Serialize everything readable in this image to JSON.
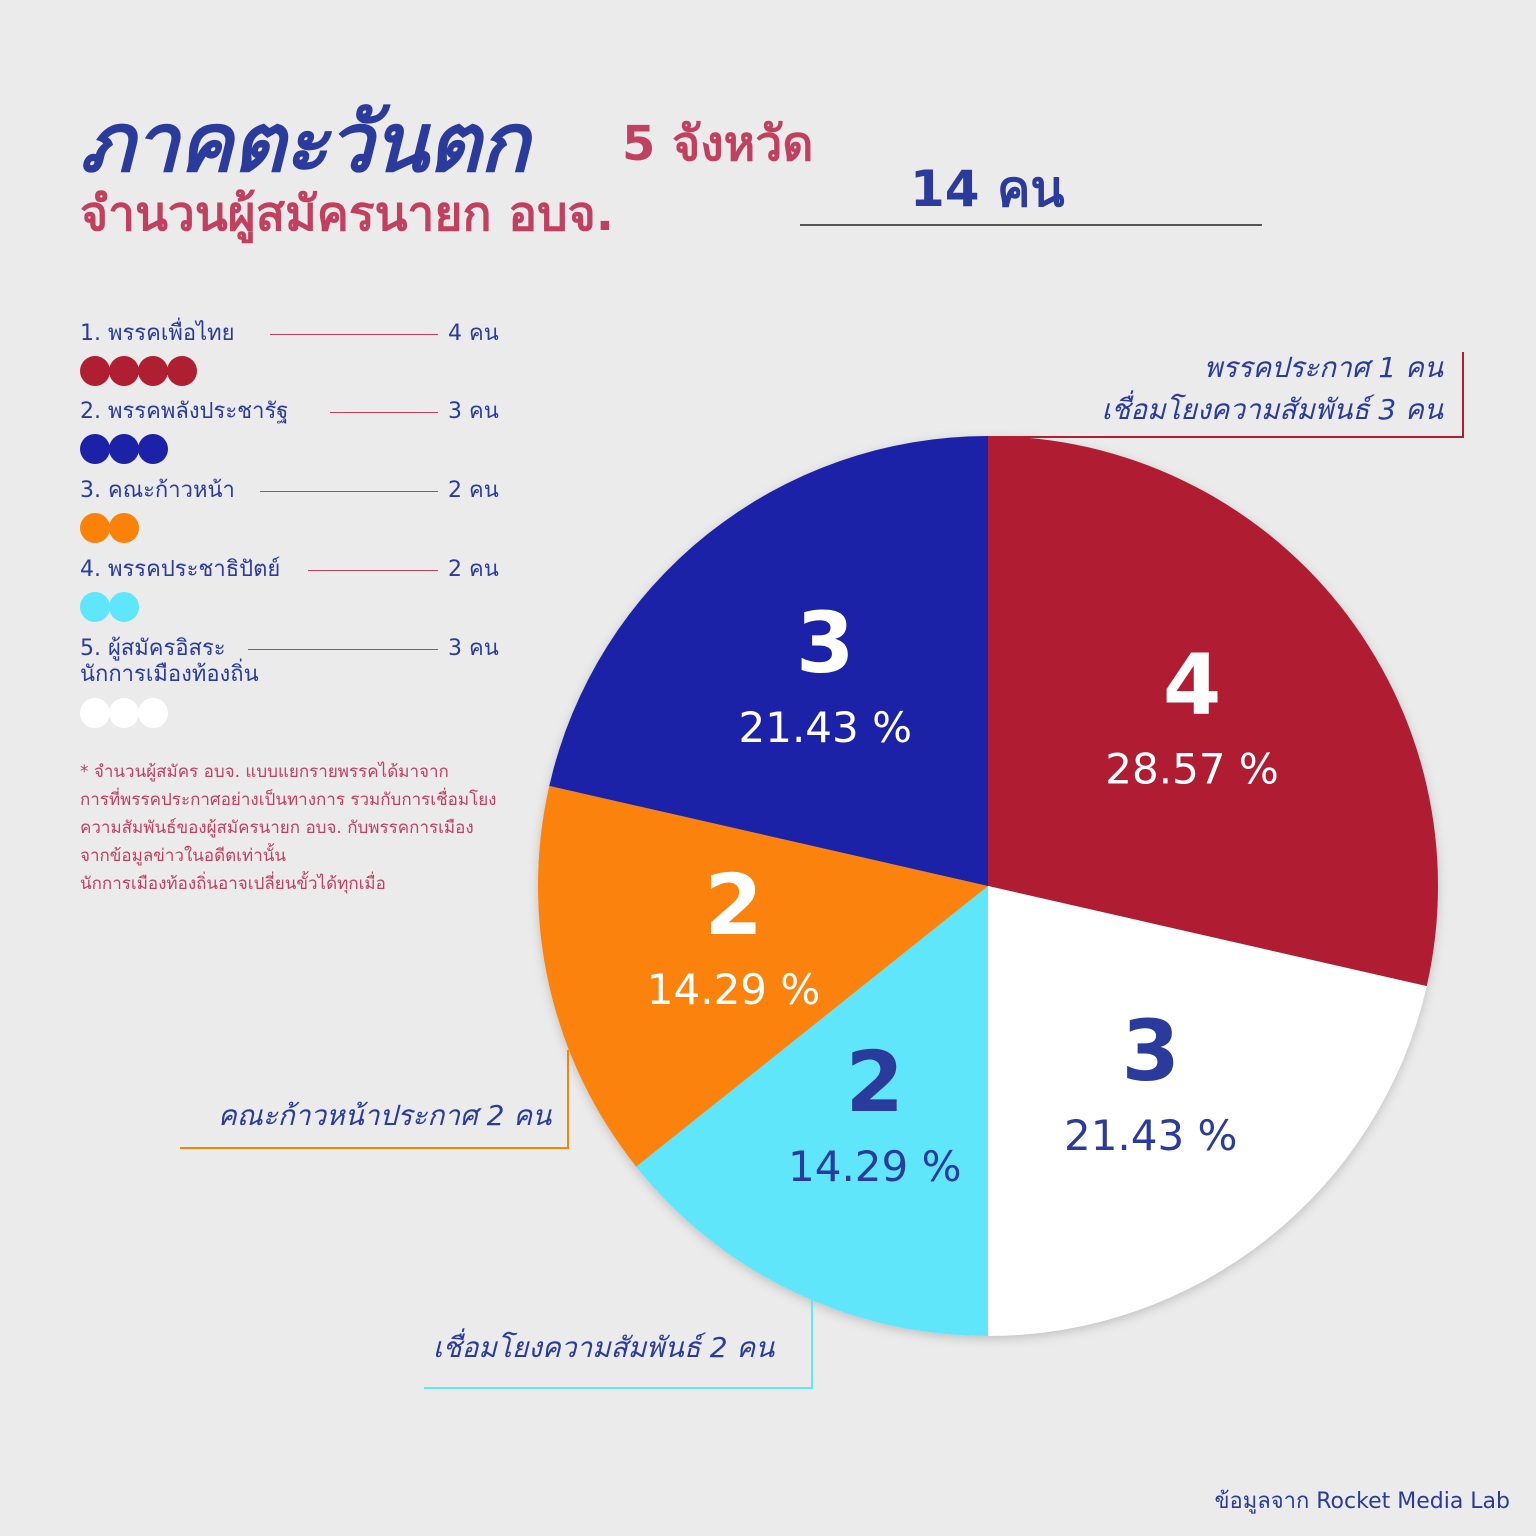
{
  "header": {
    "title": "ภาคตะวันตก",
    "subtitle": "5 จังหวัด",
    "line2": "จำนวนผู้สมัครนายก อบจ.",
    "total": "14 คน"
  },
  "legend": [
    {
      "label": "1. พรรคเพื่อไทย",
      "count": "4 คน",
      "dots": 4,
      "color": "#b01f31"
    },
    {
      "label": "2. พรรคพลังประชารัฐ",
      "count": "3 คน",
      "dots": 3,
      "color": "#1c22a8"
    },
    {
      "label": "3. คณะก้าวหน้า",
      "count": "2 คน",
      "dots": 2,
      "color": "#fb8209"
    },
    {
      "label": "4. พรรคประชาธิปัตย์",
      "count": "2 คน",
      "dots": 2,
      "color": "#5fe6fb"
    },
    {
      "label": "5. ผู้สมัครอิสระ",
      "label2": "นักการเมืองท้องถิ่น",
      "count": "3 คน",
      "dots": 3,
      "color": "#ffffff"
    }
  ],
  "footnote": [
    "* จำนวนผู้สมัคร อบจ. แบบแยกรายพรรคได้มาจาก",
    "การที่พรรคประกาศอย่างเป็นทางการ รวมกับการเชื่อมโยง",
    "ความสัมพันธ์ของผู้สมัครนายก อบจ. กับพรรคการเมือง",
    "จากข้อมูลข่าวในอดีตเท่านั้น",
    "นักการเมืองท้องถิ่นอาจเปลี่ยนขั้วได้ทุกเมื่อ"
  ],
  "callouts": {
    "red_line1": "พรรคประกาศ  1 คน",
    "red_line2": "เชื่อมโยงความสัมพันธ์ 3 คน",
    "orange": "คณะก้าวหน้าประกาศ 2 คน",
    "cyan": "เชื่อมโยงความสัมพันธ์ 2 คน"
  },
  "source": "ข้อมูลจาก Rocket Media Lab",
  "chart_data": {
    "type": "pie",
    "categories": [
      "พรรคเพื่อไทย",
      "ผู้สมัครอิสระ นักการเมืองท้องถิ่น",
      "พรรคประชาธิปัตย์",
      "คณะก้าวหน้า",
      "พรรคพลังประชารัฐ"
    ],
    "values": [
      4,
      3,
      2,
      2,
      3
    ],
    "value_labels": [
      "4",
      "3",
      "2",
      "2",
      "3"
    ],
    "percent_labels": [
      "28.57 %",
      "21.43 %",
      "14.29 %",
      "14.29 %",
      "21.43 %"
    ],
    "colors": [
      "#b01f31",
      "#ffffff",
      "#5fe6fb",
      "#fb8209",
      "#1c22a8"
    ],
    "text_colors": [
      "#ffffff",
      "#2b3b9c",
      "#2b3b9c",
      "#ffffff",
      "#ffffff"
    ]
  }
}
